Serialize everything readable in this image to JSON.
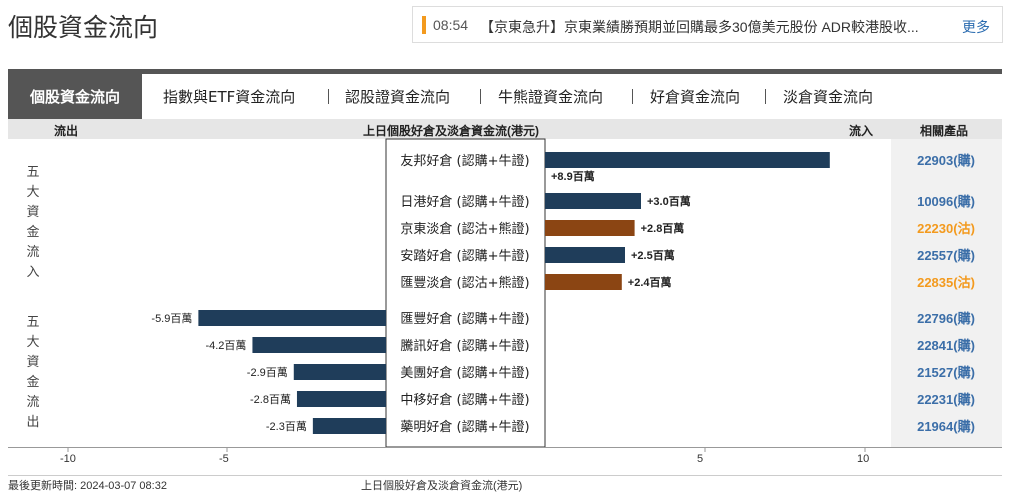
{
  "page": {
    "title": "個股資金流向"
  },
  "ticker": {
    "time": "08:54",
    "headline": "【京東急升】京東業績勝預期並回購最多30億美元股份 ADR較港股收...",
    "more": "更多"
  },
  "tabs": {
    "active": "個股資金流向",
    "items": [
      "指數與ETF資金流向",
      "認股證資金流向",
      "牛熊證資金流向",
      "好倉資金流向",
      "淡倉資金流向"
    ]
  },
  "header": {
    "outflow": "流出",
    "center": "上日個股好倉及淡倉資金流(港元)",
    "inflow": "流入",
    "related": "相關產品"
  },
  "side_labels": {
    "inflow": "五大資金流入",
    "outflow": "五大資金流出"
  },
  "colors": {
    "call": "#1f3d5a",
    "put": "#8b4513",
    "call_text": "#3b6ea8",
    "put_text": "#f39a1e"
  },
  "chart_data": {
    "type": "bar",
    "orientation": "horizontal",
    "unit": "百萬",
    "xlim": [
      -10,
      10
    ],
    "xticks": [
      -10,
      -5,
      5,
      10
    ],
    "xlabel": "上日個股好倉及淡倉資金流(港元)",
    "rows": [
      {
        "label": "友邦好倉 (認購+牛證)",
        "value": 8.9,
        "value_label": "+8.9百萬",
        "type": "call",
        "product": "22903(購)"
      },
      {
        "label": "日港好倉 (認購+牛證)",
        "value": 3.0,
        "value_label": "+3.0百萬",
        "type": "call",
        "product": "10096(購)"
      },
      {
        "label": "京東淡倉 (認沽+熊證)",
        "value": 2.8,
        "value_label": "+2.8百萬",
        "type": "put",
        "product": "22230(沽)"
      },
      {
        "label": "安踏好倉 (認購+牛證)",
        "value": 2.5,
        "value_label": "+2.5百萬",
        "type": "call",
        "product": "22557(購)"
      },
      {
        "label": "匯豐淡倉 (認沽+熊證)",
        "value": 2.4,
        "value_label": "+2.4百萬",
        "type": "put",
        "product": "22835(沽)"
      },
      {
        "label": "匯豐好倉 (認購+牛證)",
        "value": -5.9,
        "value_label": "-5.9百萬",
        "type": "call",
        "product": "22796(購)"
      },
      {
        "label": "騰訊好倉 (認購+牛證)",
        "value": -4.2,
        "value_label": "-4.2百萬",
        "type": "call",
        "product": "22841(購)"
      },
      {
        "label": "美團好倉 (認購+牛證)",
        "value": -2.9,
        "value_label": "-2.9百萬",
        "type": "call",
        "product": "21527(購)"
      },
      {
        "label": "中移好倉 (認購+牛證)",
        "value": -2.8,
        "value_label": "-2.8百萬",
        "type": "call",
        "product": "22231(購)"
      },
      {
        "label": "藥明好倉 (認購+牛證)",
        "value": -2.3,
        "value_label": "-2.3百萬",
        "type": "call",
        "product": "21964(購)"
      }
    ]
  },
  "footer": {
    "updated": "最後更新時間: 2024-03-07 08:32",
    "axis_title": "上日個股好倉及淡倉資金流(港元)"
  }
}
